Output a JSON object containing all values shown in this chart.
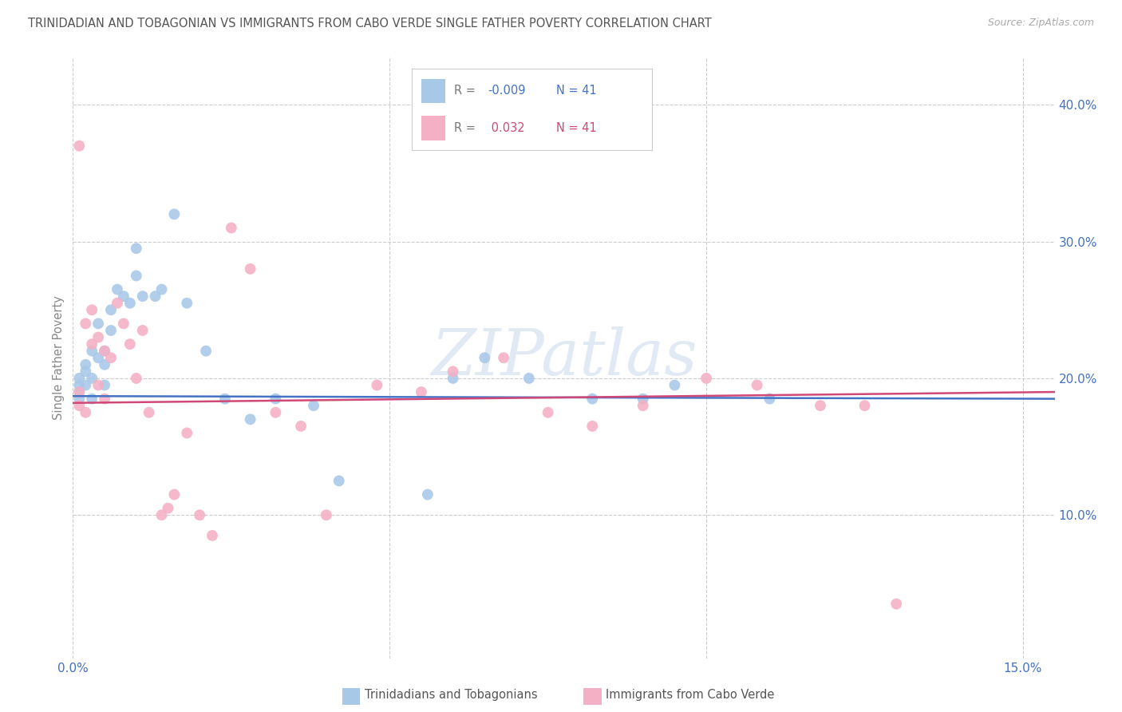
{
  "title": "TRINIDADIAN AND TOBAGONIAN VS IMMIGRANTS FROM CABO VERDE SINGLE FATHER POVERTY CORRELATION CHART",
  "source": "Source: ZipAtlas.com",
  "xlim": [
    0.0,
    0.155
  ],
  "ylim": [
    -0.005,
    0.435
  ],
  "ylabel": "Single Father Poverty",
  "legend_label1": "Trinidadians and Tobagonians",
  "legend_label2": "Immigrants from Cabo Verde",
  "R1": -0.009,
  "N1": 41,
  "R2": 0.032,
  "N2": 41,
  "color1": "#a8c8e8",
  "color2": "#f4b0c4",
  "line_color1": "#4472c4",
  "line_color2": "#d04878",
  "blue_x": [
    0.001,
    0.001,
    0.001,
    0.001,
    0.002,
    0.002,
    0.002,
    0.003,
    0.003,
    0.003,
    0.004,
    0.004,
    0.005,
    0.005,
    0.005,
    0.006,
    0.006,
    0.007,
    0.008,
    0.009,
    0.01,
    0.01,
    0.011,
    0.013,
    0.014,
    0.016,
    0.018,
    0.021,
    0.024,
    0.028,
    0.032,
    0.038,
    0.042,
    0.056,
    0.06,
    0.065,
    0.072,
    0.082,
    0.09,
    0.095,
    0.11
  ],
  "blue_y": [
    0.19,
    0.185,
    0.2,
    0.195,
    0.21,
    0.195,
    0.205,
    0.22,
    0.2,
    0.185,
    0.215,
    0.24,
    0.22,
    0.195,
    0.21,
    0.25,
    0.235,
    0.265,
    0.26,
    0.255,
    0.275,
    0.295,
    0.26,
    0.26,
    0.265,
    0.32,
    0.255,
    0.22,
    0.185,
    0.17,
    0.185,
    0.18,
    0.125,
    0.115,
    0.2,
    0.215,
    0.2,
    0.185,
    0.185,
    0.195,
    0.185
  ],
  "pink_x": [
    0.001,
    0.001,
    0.001,
    0.002,
    0.002,
    0.003,
    0.003,
    0.004,
    0.004,
    0.005,
    0.005,
    0.006,
    0.007,
    0.008,
    0.009,
    0.01,
    0.011,
    0.012,
    0.014,
    0.015,
    0.016,
    0.018,
    0.02,
    0.022,
    0.025,
    0.028,
    0.032,
    0.036,
    0.04,
    0.048,
    0.055,
    0.06,
    0.068,
    0.075,
    0.082,
    0.09,
    0.1,
    0.108,
    0.118,
    0.125,
    0.13
  ],
  "pink_y": [
    0.19,
    0.18,
    0.37,
    0.24,
    0.175,
    0.25,
    0.225,
    0.23,
    0.195,
    0.22,
    0.185,
    0.215,
    0.255,
    0.24,
    0.225,
    0.2,
    0.235,
    0.175,
    0.1,
    0.105,
    0.115,
    0.16,
    0.1,
    0.085,
    0.31,
    0.28,
    0.175,
    0.165,
    0.1,
    0.195,
    0.19,
    0.205,
    0.215,
    0.175,
    0.165,
    0.18,
    0.2,
    0.195,
    0.18,
    0.18,
    0.035
  ],
  "background_color": "#ffffff",
  "grid_color": "#cccccc",
  "title_color": "#555555",
  "axis_color": "#4472c4",
  "watermark": "ZIPatlas"
}
